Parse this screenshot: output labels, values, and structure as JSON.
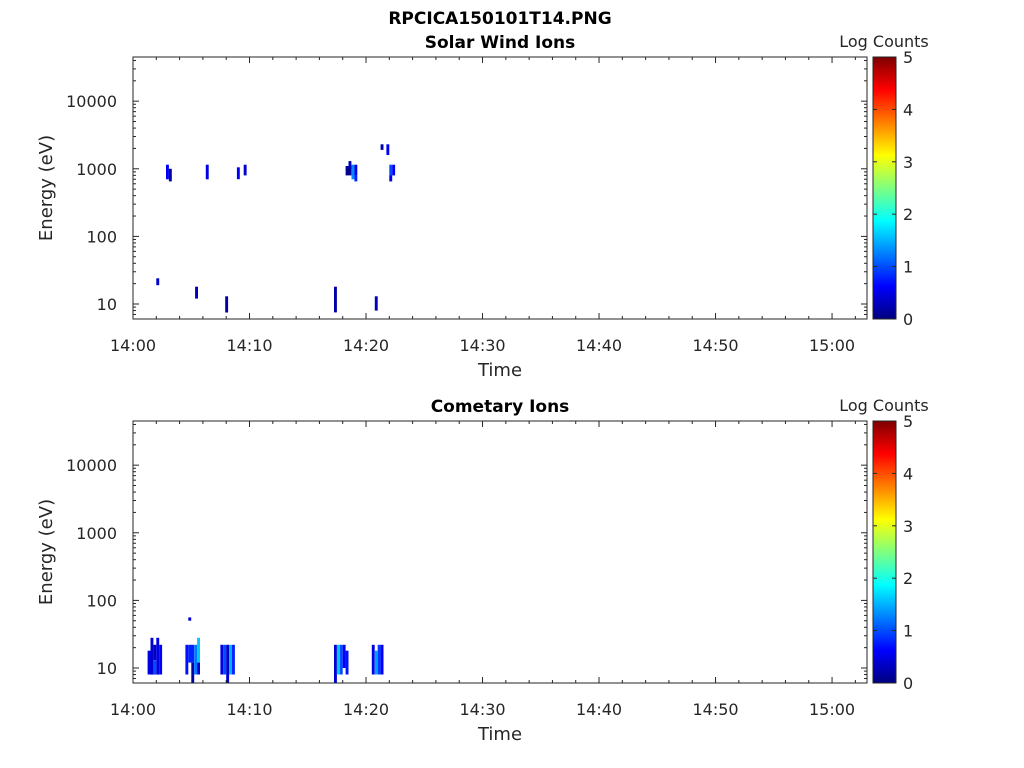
{
  "title": "RPCICA150101T14.PNG",
  "colormap": [
    "#00007f",
    "#0000ff",
    "#007fff",
    "#00ffff",
    "#7fff7f",
    "#ffff00",
    "#ff7f00",
    "#ff0000",
    "#7f0000"
  ],
  "chart_data": [
    {
      "type": "heatmap",
      "title": "Solar Wind Ions",
      "xlabel": "Time",
      "ylabel": "Energy (eV)",
      "xlim": [
        "14:00",
        "15:03"
      ],
      "ylim": [
        6,
        45000
      ],
      "yscale": "log",
      "xticks": [
        "14:00",
        "14:10",
        "14:20",
        "14:30",
        "14:40",
        "14:50",
        "15:00"
      ],
      "yticks": [
        10,
        100,
        1000,
        10000
      ],
      "ytick_labels": [
        "10",
        "100",
        "1000",
        "10000"
      ],
      "colorbar": {
        "label": "Log Counts",
        "range": [
          0,
          5
        ],
        "ticks": [
          "0",
          "1",
          "2",
          "3",
          "4",
          "5"
        ]
      },
      "cells": [
        {
          "t0": "14:02:00",
          "t1": "14:02:15",
          "e0": 19,
          "e1": 24,
          "log_counts": 0.4
        },
        {
          "t0": "14:02:50",
          "t1": "14:03:05",
          "e0": 700,
          "e1": 1150,
          "log_counts": 0.6
        },
        {
          "t0": "14:03:05",
          "t1": "14:03:20",
          "e0": 650,
          "e1": 1000,
          "log_counts": 0.2
        },
        {
          "t0": "14:05:20",
          "t1": "14:05:35",
          "e0": 12,
          "e1": 18,
          "log_counts": 0.3
        },
        {
          "t0": "14:06:15",
          "t1": "14:06:30",
          "e0": 700,
          "e1": 1150,
          "log_counts": 0.5
        },
        {
          "t0": "14:07:55",
          "t1": "14:08:10",
          "e0": 7.5,
          "e1": 13,
          "log_counts": 0.2
        },
        {
          "t0": "14:08:55",
          "t1": "14:09:10",
          "e0": 700,
          "e1": 1050,
          "log_counts": 0.6
        },
        {
          "t0": "14:09:30",
          "t1": "14:09:45",
          "e0": 800,
          "e1": 1150,
          "log_counts": 0.4
        },
        {
          "t0": "14:17:15",
          "t1": "14:17:30",
          "e0": 7.5,
          "e1": 18,
          "log_counts": 0.2
        },
        {
          "t0": "14:18:15",
          "t1": "14:18:45",
          "e0": 800,
          "e1": 1100,
          "log_counts": 0.1
        },
        {
          "t0": "14:18:30",
          "t1": "14:18:45",
          "e0": 1000,
          "e1": 1300,
          "log_counts": 0.3
        },
        {
          "t0": "14:18:45",
          "t1": "14:19:00",
          "e0": 700,
          "e1": 1150,
          "log_counts": 1.3
        },
        {
          "t0": "14:19:00",
          "t1": "14:19:15",
          "e0": 800,
          "e1": 1150,
          "log_counts": 0.5
        },
        {
          "t0": "14:19:00",
          "t1": "14:19:15",
          "e0": 650,
          "e1": 800,
          "log_counts": 0.8
        },
        {
          "t0": "14:20:45",
          "t1": "14:21:00",
          "e0": 8,
          "e1": 13,
          "log_counts": 0.3
        },
        {
          "t0": "14:21:15",
          "t1": "14:21:30",
          "e0": 1900,
          "e1": 2300,
          "log_counts": 0.2
        },
        {
          "t0": "14:21:45",
          "t1": "14:22:00",
          "e0": 1600,
          "e1": 2300,
          "log_counts": 0.6
        },
        {
          "t0": "14:22:00",
          "t1": "14:22:15",
          "e0": 800,
          "e1": 1150,
          "log_counts": 1.0
        },
        {
          "t0": "14:22:00",
          "t1": "14:22:15",
          "e0": 650,
          "e1": 800,
          "log_counts": 0.5
        },
        {
          "t0": "14:22:15",
          "t1": "14:22:30",
          "e0": 800,
          "e1": 1150,
          "log_counts": 0.6
        }
      ]
    },
    {
      "type": "heatmap",
      "title": "Cometary Ions",
      "xlabel": "Time",
      "ylabel": "Energy (eV)",
      "xlim": [
        "14:00",
        "15:03"
      ],
      "ylim": [
        6,
        45000
      ],
      "yscale": "log",
      "xticks": [
        "14:00",
        "14:10",
        "14:20",
        "14:30",
        "14:40",
        "14:50",
        "15:00"
      ],
      "yticks": [
        10,
        100,
        1000,
        10000
      ],
      "ytick_labels": [
        "10",
        "100",
        "1000",
        "10000"
      ],
      "colorbar": {
        "label": "Log Counts",
        "range": [
          0,
          5
        ],
        "ticks": [
          "0",
          "1",
          "2",
          "3",
          "4",
          "5"
        ]
      },
      "cells": [
        {
          "t0": "14:01:15",
          "t1": "14:01:30",
          "e0": 8,
          "e1": 18,
          "log_counts": 0.5
        },
        {
          "t0": "14:01:30",
          "t1": "14:01:45",
          "e0": 8,
          "e1": 28,
          "log_counts": 0.4
        },
        {
          "t0": "14:01:45",
          "t1": "14:02:00",
          "e0": 8,
          "e1": 13,
          "log_counts": 1.0
        },
        {
          "t0": "14:01:45",
          "t1": "14:02:00",
          "e0": 13,
          "e1": 22,
          "log_counts": 0.3
        },
        {
          "t0": "14:02:00",
          "t1": "14:02:15",
          "e0": 8,
          "e1": 28,
          "log_counts": 0.5
        },
        {
          "t0": "14:02:15",
          "t1": "14:02:30",
          "e0": 8,
          "e1": 22,
          "log_counts": 0.6
        },
        {
          "t0": "14:04:45",
          "t1": "14:05:00",
          "e0": 50,
          "e1": 56,
          "log_counts": 0.4
        },
        {
          "t0": "14:04:30",
          "t1": "14:04:45",
          "e0": 8,
          "e1": 22,
          "log_counts": 0.7
        },
        {
          "t0": "14:04:45",
          "t1": "14:05:15",
          "e0": 12,
          "e1": 22,
          "log_counts": 0.8
        },
        {
          "t0": "14:05:00",
          "t1": "14:05:15",
          "e0": 6,
          "e1": 12,
          "log_counts": 0.2
        },
        {
          "t0": "14:05:15",
          "t1": "14:05:30",
          "e0": 8,
          "e1": 22,
          "log_counts": 1.2
        },
        {
          "t0": "14:05:30",
          "t1": "14:05:45",
          "e0": 12,
          "e1": 28,
          "log_counts": 1.6
        },
        {
          "t0": "14:05:30",
          "t1": "14:05:45",
          "e0": 8,
          "e1": 12,
          "log_counts": 0.4
        },
        {
          "t0": "14:07:30",
          "t1": "14:07:45",
          "e0": 8,
          "e1": 22,
          "log_counts": 0.5
        },
        {
          "t0": "14:07:45",
          "t1": "14:08:00",
          "e0": 8,
          "e1": 22,
          "log_counts": 1.0
        },
        {
          "t0": "14:08:00",
          "t1": "14:08:15",
          "e0": 6,
          "e1": 22,
          "log_counts": 0.4
        },
        {
          "t0": "14:08:15",
          "t1": "14:08:30",
          "e0": 8,
          "e1": 22,
          "log_counts": 1.5
        },
        {
          "t0": "14:08:30",
          "t1": "14:08:45",
          "e0": 8,
          "e1": 22,
          "log_counts": 0.8
        },
        {
          "t0": "14:17:15",
          "t1": "14:17:30",
          "e0": 6,
          "e1": 22,
          "log_counts": 0.4
        },
        {
          "t0": "14:17:30",
          "t1": "14:17:45",
          "e0": 8,
          "e1": 22,
          "log_counts": 1.6
        },
        {
          "t0": "14:17:45",
          "t1": "14:18:00",
          "e0": 8,
          "e1": 22,
          "log_counts": 1.0
        },
        {
          "t0": "14:18:00",
          "t1": "14:18:15",
          "e0": 10,
          "e1": 22,
          "log_counts": 0.6
        },
        {
          "t0": "14:18:15",
          "t1": "14:18:30",
          "e0": 8,
          "e1": 18,
          "log_counts": 0.7
        },
        {
          "t0": "14:20:30",
          "t1": "14:20:45",
          "e0": 8,
          "e1": 22,
          "log_counts": 0.5
        },
        {
          "t0": "14:20:45",
          "t1": "14:21:00",
          "e0": 8,
          "e1": 18,
          "log_counts": 1.4
        },
        {
          "t0": "14:21:00",
          "t1": "14:21:15",
          "e0": 8,
          "e1": 22,
          "log_counts": 0.9
        },
        {
          "t0": "14:21:15",
          "t1": "14:21:30",
          "e0": 8,
          "e1": 22,
          "log_counts": 0.6
        }
      ]
    }
  ]
}
